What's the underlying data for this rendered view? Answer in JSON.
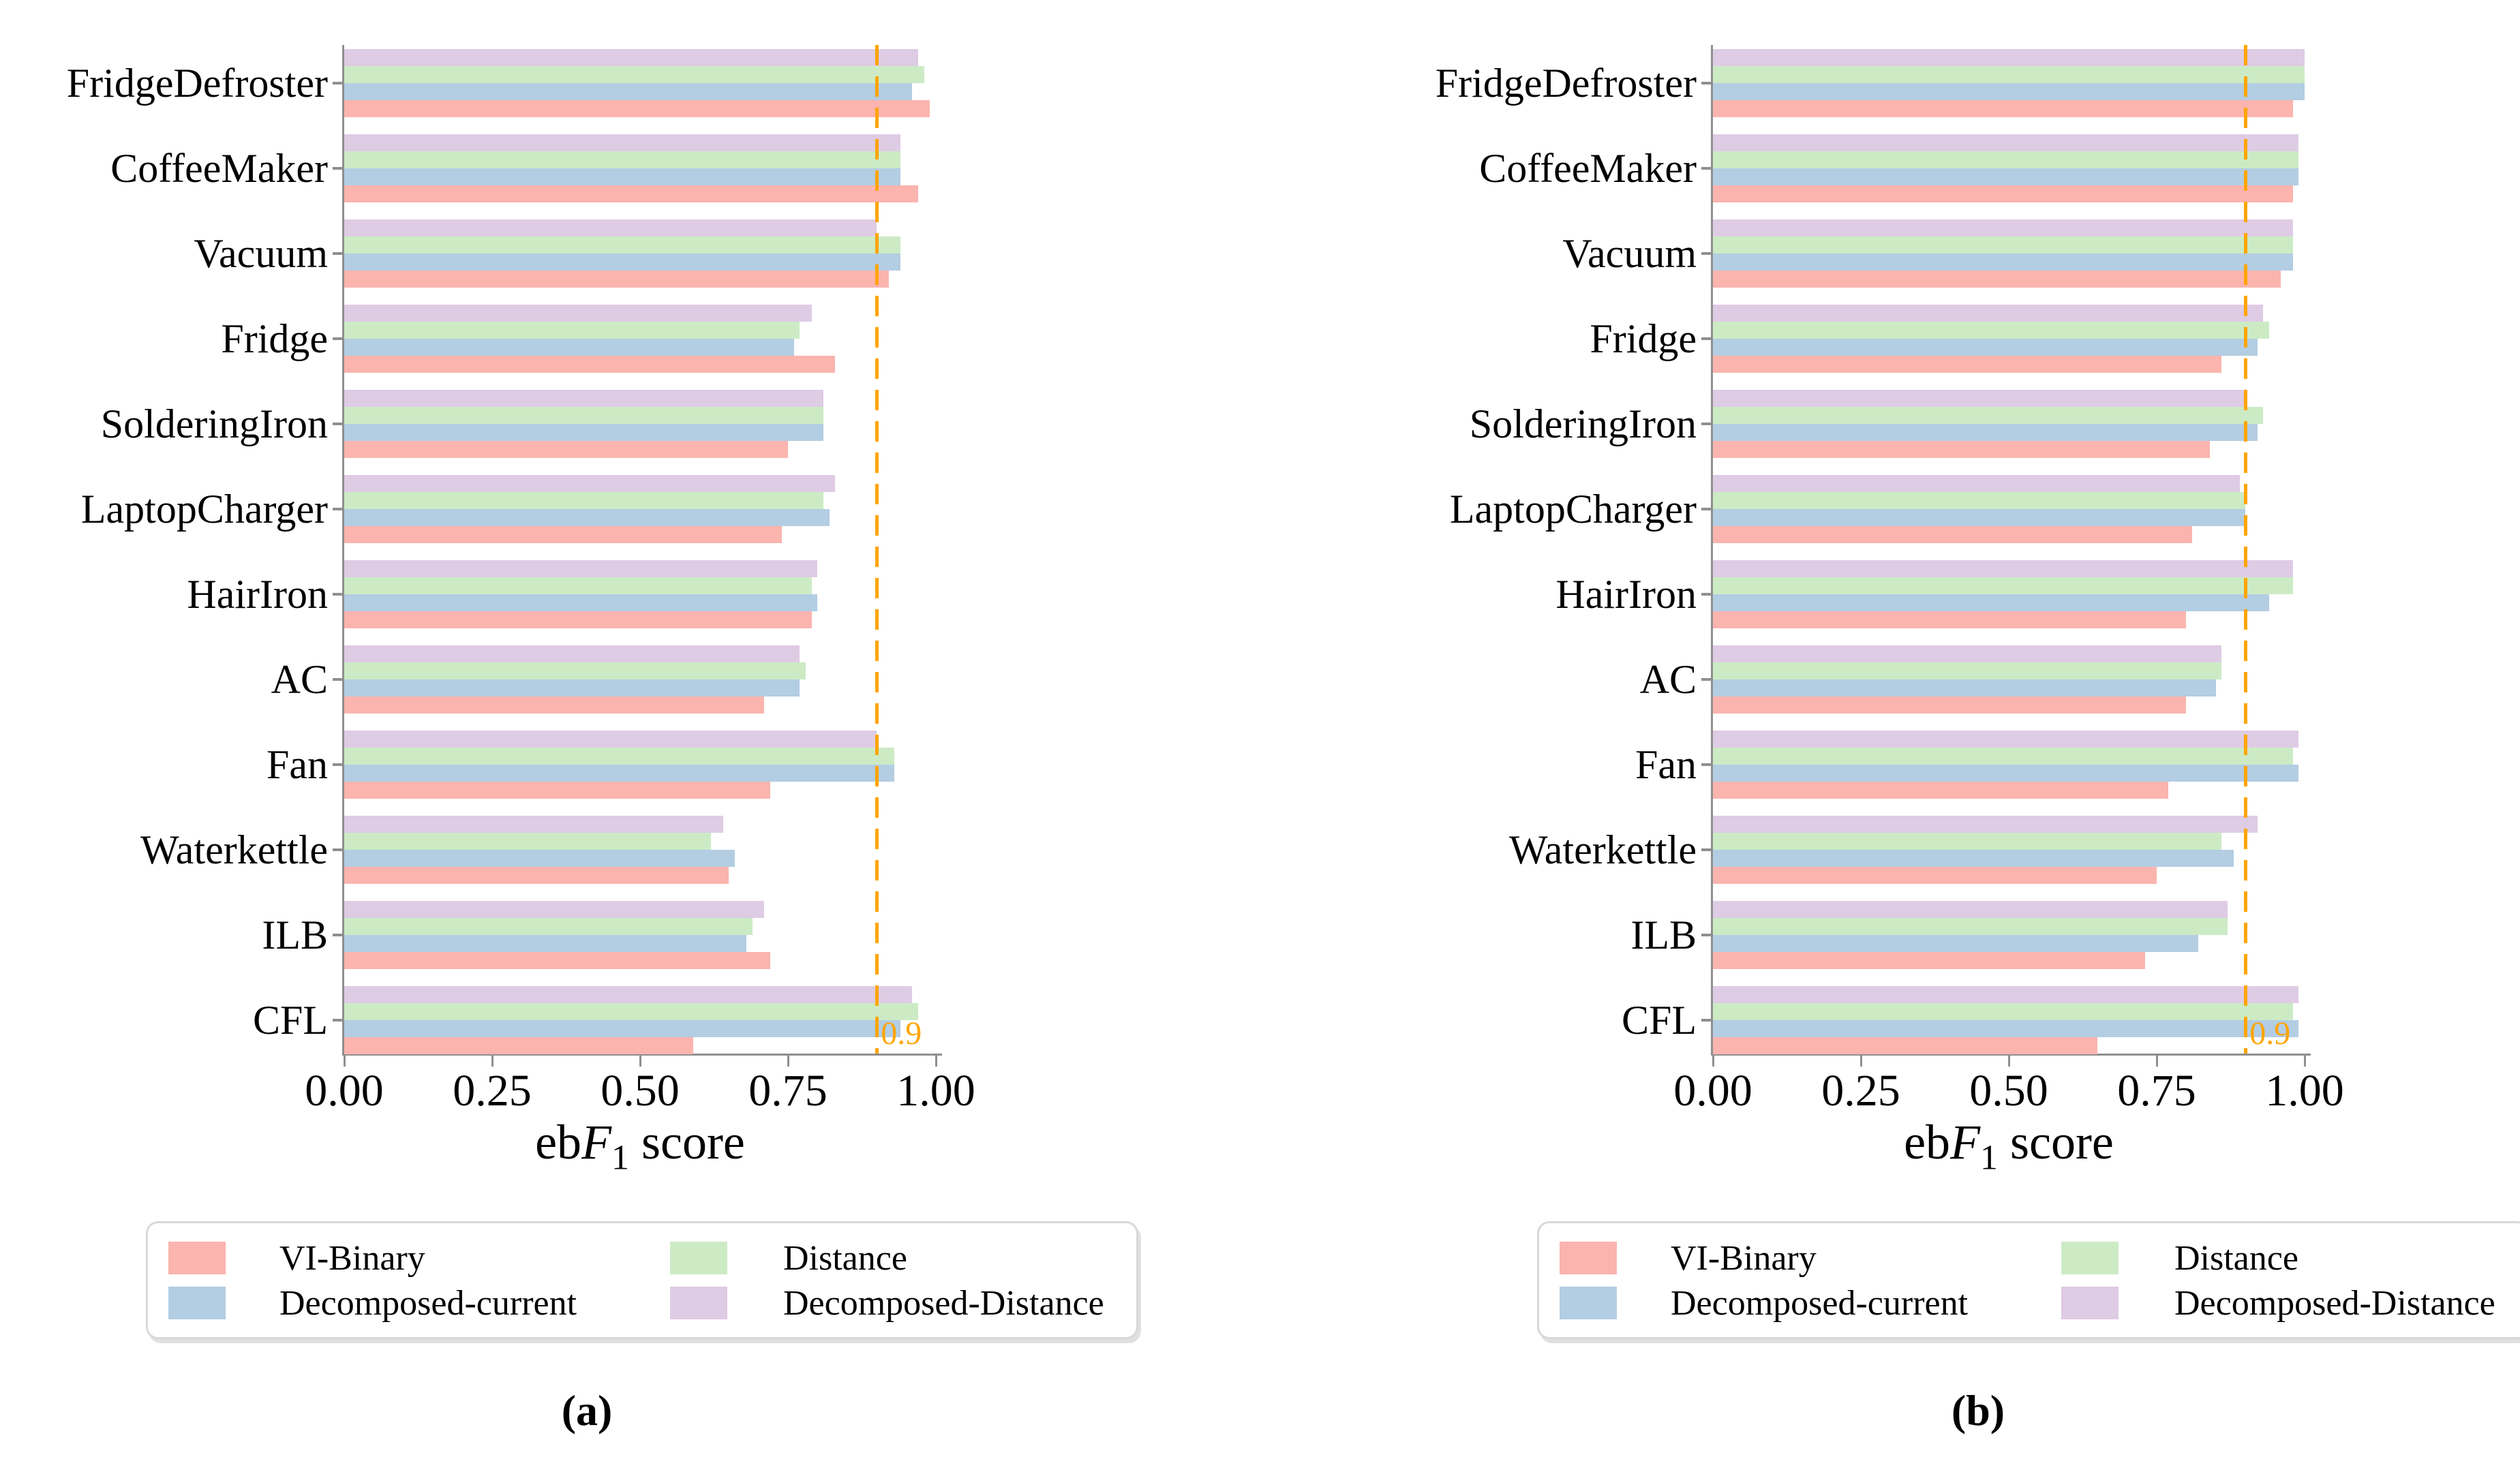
{
  "axis": {
    "xticks": [
      "0.00",
      "0.25",
      "0.50",
      "0.75",
      "1.00"
    ],
    "xtick_values": [
      0,
      0.25,
      0.5,
      0.75,
      1.0
    ],
    "xlabel": {
      "pre": "eb",
      "var": "F",
      "sub": "1",
      "post": "score"
    }
  },
  "threshold": {
    "value": 0.9,
    "label": "0.9",
    "color": "#FFA500"
  },
  "legend": {
    "items": [
      {
        "label": "VI-Binary",
        "color": "#fbb4ae"
      },
      {
        "label": "Decomposed-current",
        "color": "#b3cde3"
      },
      {
        "label": "Distance",
        "color": "#ccebc5"
      },
      {
        "label": "Decomposed-Distance",
        "color": "#decbe4"
      }
    ]
  },
  "colors": {
    "vi_binary": "#fbb4ae",
    "decomposed_current": "#b3cde3",
    "distance": "#ccebc5",
    "decomposed_distance": "#decbe4",
    "threshold_line": "#FFA500",
    "axis_gray": "#8f8f8f"
  },
  "chart_data": [
    {
      "id": "a",
      "type": "bar",
      "orientation": "horizontal",
      "caption": "(a)",
      "xlabel": "ebF1 score",
      "xlim": [
        0,
        1.0
      ],
      "grid": false,
      "legend_position": "below",
      "threshold": {
        "value": 0.9,
        "label": "0.9"
      },
      "categories": [
        "FridgeDefroster",
        "CoffeeMaker",
        "Vacuum",
        "Fridge",
        "SolderingIron",
        "LaptopCharger",
        "HairIron",
        "AC",
        "Fan",
        "Waterkettle",
        "ILB",
        "CFL"
      ],
      "series": [
        {
          "name": "VI-Binary",
          "color": "#fbb4ae",
          "values": [
            0.99,
            0.97,
            0.92,
            0.83,
            0.75,
            0.74,
            0.79,
            0.71,
            0.72,
            0.65,
            0.72,
            0.59
          ]
        },
        {
          "name": "Decomposed-current",
          "color": "#b3cde3",
          "values": [
            0.96,
            0.94,
            0.94,
            0.76,
            0.81,
            0.82,
            0.8,
            0.77,
            0.93,
            0.66,
            0.68,
            0.94
          ]
        },
        {
          "name": "Distance",
          "color": "#ccebc5",
          "values": [
            0.98,
            0.94,
            0.94,
            0.77,
            0.81,
            0.81,
            0.79,
            0.78,
            0.93,
            0.62,
            0.69,
            0.97
          ]
        },
        {
          "name": "Decomposed-Distance",
          "color": "#decbe4",
          "values": [
            0.97,
            0.94,
            0.9,
            0.79,
            0.81,
            0.83,
            0.8,
            0.77,
            0.9,
            0.64,
            0.71,
            0.96
          ]
        }
      ]
    },
    {
      "id": "b",
      "type": "bar",
      "orientation": "horizontal",
      "caption": "(b)",
      "xlabel": "ebF1 score",
      "xlim": [
        0,
        1.0
      ],
      "grid": false,
      "legend_position": "below",
      "threshold": {
        "value": 0.9,
        "label": "0.9"
      },
      "categories": [
        "FridgeDefroster",
        "CoffeeMaker",
        "Vacuum",
        "Fridge",
        "SolderingIron",
        "LaptopCharger",
        "HairIron",
        "AC",
        "Fan",
        "Waterkettle",
        "ILB",
        "CFL"
      ],
      "series": [
        {
          "name": "VI-Binary",
          "color": "#fbb4ae",
          "values": [
            0.98,
            0.98,
            0.96,
            0.86,
            0.84,
            0.81,
            0.8,
            0.8,
            0.77,
            0.75,
            0.73,
            0.65
          ]
        },
        {
          "name": "Decomposed-current",
          "color": "#b3cde3",
          "values": [
            1.0,
            0.99,
            0.98,
            0.92,
            0.92,
            0.9,
            0.94,
            0.85,
            0.99,
            0.88,
            0.82,
            0.99
          ]
        },
        {
          "name": "Distance",
          "color": "#ccebc5",
          "values": [
            1.0,
            0.99,
            0.98,
            0.94,
            0.93,
            0.9,
            0.98,
            0.86,
            0.98,
            0.86,
            0.87,
            0.98
          ]
        },
        {
          "name": "Decomposed-Distance",
          "color": "#decbe4",
          "values": [
            1.0,
            0.99,
            0.98,
            0.93,
            0.9,
            0.89,
            0.98,
            0.86,
            0.99,
            0.92,
            0.87,
            0.99
          ]
        }
      ]
    }
  ]
}
